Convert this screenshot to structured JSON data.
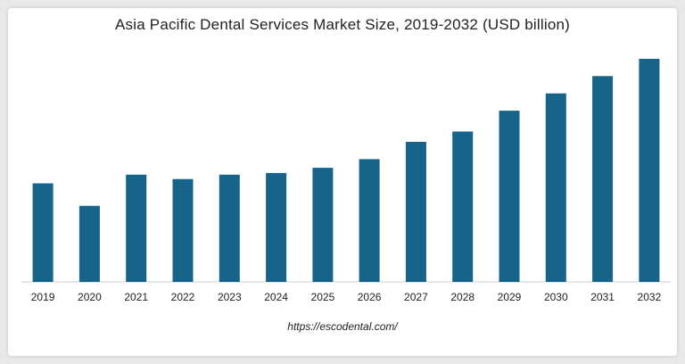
{
  "chart_data": {
    "type": "bar",
    "title": "Asia Pacific Dental Services Market Size, 2019-2032 (USD billion)",
    "categories": [
      "2019",
      "2020",
      "2021",
      "2022",
      "2023",
      "2024",
      "2025",
      "2026",
      "2027",
      "2028",
      "2029",
      "2030",
      "2031",
      "2032"
    ],
    "values": [
      57,
      44,
      62,
      59.5,
      62,
      63,
      66,
      71,
      81,
      87,
      99,
      109,
      119,
      129
    ],
    "ylim": [
      0,
      130
    ],
    "xlabel": "",
    "ylabel": "",
    "grid": false,
    "legend": "none",
    "bar_color": "#17648b",
    "axis_color": "#d0d0d0"
  },
  "footer": {
    "source": "https://escodental.com/"
  }
}
